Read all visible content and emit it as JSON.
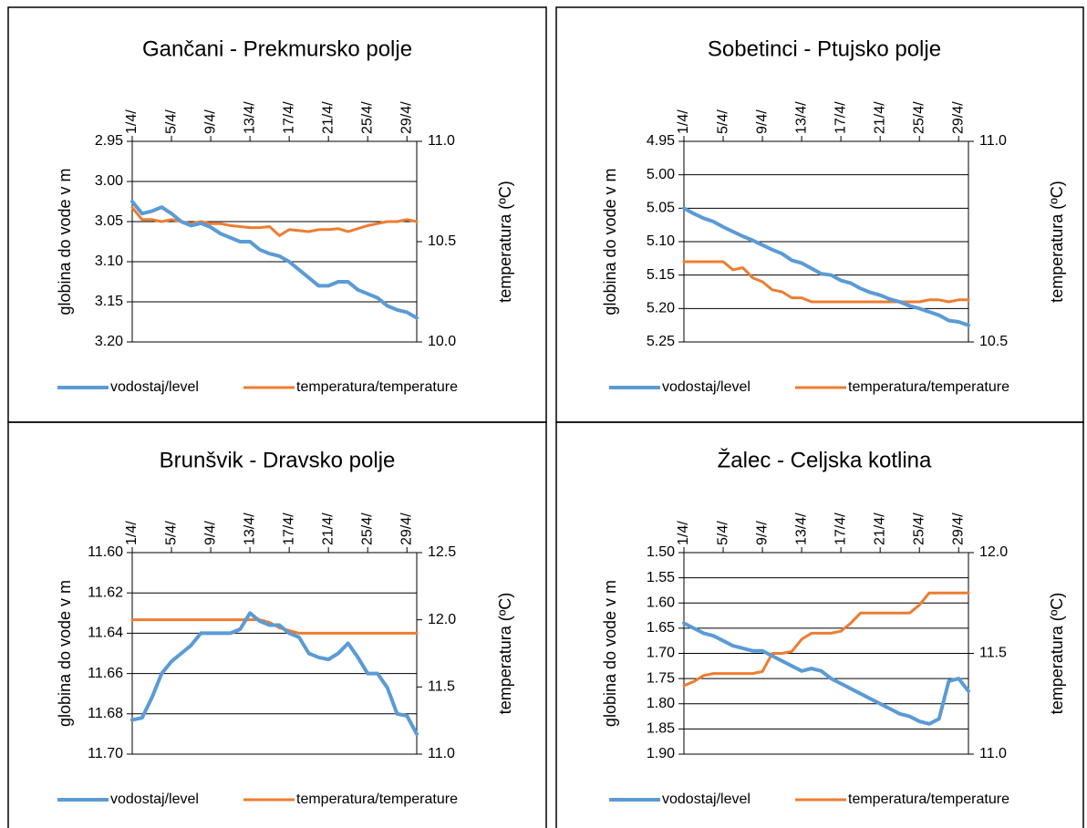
{
  "chart_data": [
    {
      "type": "line",
      "title": "Gančani - Prekmursko polje",
      "y_label": "globina do vode v m",
      "y2_label": "temperatura (ºC)",
      "categories": [
        "1/4/",
        null,
        null,
        null,
        "5/4/",
        null,
        null,
        null,
        "9/4/",
        null,
        null,
        null,
        "13/4/",
        null,
        null,
        null,
        "17/4/",
        null,
        null,
        null,
        "21/4/",
        null,
        null,
        null,
        "25/4/",
        null,
        null,
        null,
        "29/4/",
        null
      ],
      "series": [
        {
          "name": "vodostaj/level",
          "color": "#5b9bd5",
          "values": [
            3.025,
            3.04,
            3.037,
            3.032,
            3.04,
            3.05,
            3.055,
            3.052,
            3.057,
            3.065,
            3.07,
            3.075,
            3.075,
            3.085,
            3.09,
            3.093,
            3.1,
            3.11,
            3.12,
            3.13,
            3.13,
            3.125,
            3.125,
            3.135,
            3.14,
            3.145,
            3.155,
            3.16,
            3.163,
            3.17
          ]
        },
        {
          "name": "temperatura/temperature",
          "color": "#ed7d31",
          "axis": "y2",
          "values": [
            10.67,
            10.61,
            10.61,
            10.6,
            10.61,
            10.6,
            10.59,
            10.6,
            10.59,
            10.59,
            10.58,
            10.575,
            10.57,
            10.57,
            10.575,
            10.53,
            10.56,
            10.555,
            10.55,
            10.56,
            10.56,
            10.565,
            10.55,
            10.565,
            10.58,
            10.59,
            10.6,
            10.6,
            10.61,
            10.6
          ]
        }
      ],
      "ylim": [
        2.95,
        3.2
      ],
      "yticks": [
        2.95,
        {
          "value": 3,
          "label": "3.00"
        },
        3.05,
        {
          "value": 3.1,
          "label": "3.10"
        },
        3.15,
        {
          "value": 3.2,
          "label": "3.20"
        }
      ],
      "y2lim": [
        10,
        11
      ],
      "y2ticks": [
        {
          "value": 10,
          "label": "10.0"
        },
        10.5,
        {
          "value": 11,
          "label": "11.0"
        }
      ],
      "y_reversed": true,
      "grid": true,
      "legend": "bottom"
    },
    {
      "type": "line",
      "title": "Sobetinci - Ptujsko polje",
      "y_label": "globina do vode v m",
      "y2_label": "temperatura (ºC)",
      "categories": [
        "1/4/",
        null,
        null,
        null,
        "5/4/",
        null,
        null,
        null,
        "9/4/",
        null,
        null,
        null,
        "13/4/",
        null,
        null,
        null,
        "17/4/",
        null,
        null,
        null,
        "21/4/",
        null,
        null,
        null,
        "25/4/",
        null,
        null,
        null,
        "29/4/",
        null
      ],
      "series": [
        {
          "name": "vodostaj/level",
          "color": "#5b9bd5",
          "values": [
            5.05,
            5.058,
            5.065,
            5.07,
            5.078,
            5.085,
            5.092,
            5.098,
            5.105,
            5.112,
            5.118,
            5.128,
            5.132,
            5.14,
            5.148,
            5.15,
            5.158,
            5.162,
            5.17,
            5.176,
            5.18,
            5.186,
            5.19,
            5.196,
            5.2,
            5.205,
            5.21,
            5.218,
            5.22,
            5.225
          ]
        },
        {
          "name": "temperatura/temperature",
          "color": "#ed7d31",
          "axis": "y2",
          "values": [
            10.7,
            10.7,
            10.7,
            10.7,
            10.7,
            10.68,
            10.685,
            10.66,
            10.65,
            10.63,
            10.625,
            10.61,
            10.61,
            10.6,
            10.6,
            10.6,
            10.6,
            10.6,
            10.6,
            10.6,
            10.6,
            10.6,
            10.6,
            10.6,
            10.6,
            10.605,
            10.605,
            10.6,
            10.605,
            10.605
          ]
        }
      ],
      "ylim": [
        4.95,
        5.25
      ],
      "yticks": [
        4.95,
        {
          "value": 5,
          "label": "5.00"
        },
        5.05,
        {
          "value": 5.1,
          "label": "5.10"
        },
        5.15,
        {
          "value": 5.2,
          "label": "5.20"
        },
        5.25
      ],
      "y2lim": [
        10.5,
        11
      ],
      "y2ticks": [
        10.5,
        {
          "value": 11,
          "label": "11.0"
        }
      ],
      "y_reversed": true,
      "grid": true,
      "legend": "bottom"
    },
    {
      "type": "line",
      "title": "Brunšvik - Dravsko polje",
      "y_label": "globina do vode v m",
      "y2_label": "temperatura (ºC)",
      "categories": [
        "1/4/",
        null,
        null,
        null,
        "5/4/",
        null,
        null,
        null,
        "9/4/",
        null,
        null,
        null,
        "13/4/",
        null,
        null,
        null,
        "17/4/",
        null,
        null,
        null,
        "21/4/",
        null,
        null,
        null,
        "25/4/",
        null,
        null,
        null,
        "29/4/",
        null
      ],
      "series": [
        {
          "name": "vodostaj/level",
          "color": "#5b9bd5",
          "values": [
            11.683,
            11.682,
            11.672,
            11.66,
            11.654,
            11.65,
            11.646,
            11.64,
            11.64,
            11.64,
            11.64,
            11.638,
            11.63,
            11.634,
            11.636,
            11.636,
            11.64,
            11.642,
            11.65,
            11.652,
            11.653,
            11.65,
            11.645,
            11.652,
            11.66,
            11.66,
            11.667,
            11.68,
            11.681,
            11.69
          ]
        },
        {
          "name": "temperatura/temperature",
          "color": "#ed7d31",
          "axis": "y2",
          "values": [
            12,
            12,
            12,
            12,
            12,
            12,
            12,
            12,
            12,
            12,
            12,
            12,
            12,
            12,
            11.98,
            11.94,
            11.92,
            11.9,
            11.9,
            11.9,
            11.9,
            11.9,
            11.9,
            11.9,
            11.9,
            11.9,
            11.9,
            11.9,
            11.9,
            11.9
          ]
        }
      ],
      "ylim": [
        11.6,
        11.7
      ],
      "yticks": [
        {
          "value": 11.6,
          "label": "11.60"
        },
        11.62,
        11.64,
        11.66,
        11.68,
        {
          "value": 11.7,
          "label": "11.70"
        }
      ],
      "y2lim": [
        11,
        12.5
      ],
      "y2ticks": [
        {
          "value": 11,
          "label": "11.0"
        },
        11.5,
        {
          "value": 12,
          "label": "12.0"
        },
        12.5
      ],
      "y_reversed": true,
      "grid": true,
      "legend": "bottom"
    },
    {
      "type": "line",
      "title": "Žalec - Celjska kotlina",
      "y_label": "globina do vode v m",
      "y2_label": "temperatura (ºC)",
      "categories": [
        "1/4/",
        null,
        null,
        null,
        "5/4/",
        null,
        null,
        null,
        "9/4/",
        null,
        null,
        null,
        "13/4/",
        null,
        null,
        null,
        "17/4/",
        null,
        null,
        null,
        "21/4/",
        null,
        null,
        null,
        "25/4/",
        null,
        null,
        null,
        "29/4/",
        null
      ],
      "series": [
        {
          "name": "vodostaj/level",
          "color": "#5b9bd5",
          "values": [
            1.64,
            1.65,
            1.66,
            1.665,
            1.675,
            1.685,
            1.69,
            1.695,
            1.695,
            1.705,
            1.715,
            1.725,
            1.735,
            1.73,
            1.735,
            1.75,
            1.76,
            1.77,
            1.78,
            1.79,
            1.8,
            1.81,
            1.82,
            1.825,
            1.835,
            1.84,
            1.83,
            1.755,
            1.75,
            1.775
          ]
        },
        {
          "name": "temperatura/temperature",
          "color": "#ed7d31",
          "axis": "y2",
          "values": [
            11.34,
            11.36,
            11.39,
            11.4,
            11.4,
            11.4,
            11.4,
            11.4,
            11.41,
            11.5,
            11.5,
            11.51,
            11.57,
            11.6,
            11.6,
            11.6,
            11.61,
            11.65,
            11.7,
            11.7,
            11.7,
            11.7,
            11.7,
            11.7,
            11.74,
            11.8,
            11.8,
            11.8,
            11.8,
            11.8
          ]
        }
      ],
      "ylim": [
        1.5,
        1.9
      ],
      "yticks": [
        {
          "value": 1.5,
          "label": "1.50"
        },
        1.55,
        {
          "value": 1.6,
          "label": "1.60"
        },
        1.65,
        {
          "value": 1.7,
          "label": "1.70"
        },
        1.75,
        {
          "value": 1.8,
          "label": "1.80"
        },
        1.85,
        {
          "value": 1.9,
          "label": "1.90"
        }
      ],
      "y2lim": [
        11,
        12
      ],
      "y2ticks": [
        {
          "value": 11,
          "label": "11.0"
        },
        11.5,
        {
          "value": 12,
          "label": "12.0"
        }
      ],
      "y_reversed": true,
      "grid": true,
      "legend": "bottom"
    }
  ]
}
